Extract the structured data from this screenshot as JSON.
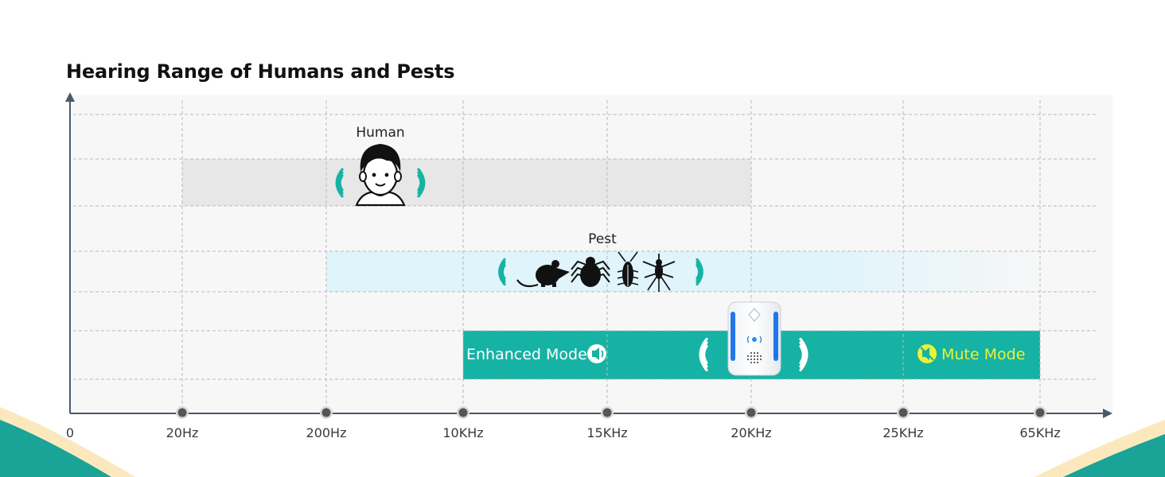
{
  "title": "Hearing Range of Humans and Pests",
  "colors": {
    "plot_bg": "#f7f7f7",
    "grid": "#b9b9b9",
    "axis": "#4a5868",
    "human_band": "#e7e7e7",
    "pest_band": "#dff4fb",
    "device_band": "#16b2a4",
    "wave": "#16b2a4",
    "enhanced_text": "#ffffff",
    "mute_text": "#e9f238",
    "deco_teal": "#1aa397",
    "deco_cream": "#fbe9bd"
  },
  "chart_data": {
    "type": "range-bar",
    "title": "Hearing Range of Humans and Pests",
    "x_ticks": [
      "0",
      "20Hz",
      "200Hz",
      "10KHz",
      "15KHz",
      "20KHz",
      "25KHz",
      "65KHz"
    ],
    "grid": true,
    "bands": [
      {
        "name": "Human",
        "start": "20Hz",
        "end": "20KHz",
        "icon": "human-face-icon"
      },
      {
        "name": "Pest",
        "start": "200Hz",
        "end": "65KHz",
        "icons": [
          "mouse-icon",
          "spider-icon",
          "cockroach-icon",
          "mosquito-icon"
        ],
        "fade_from": "25KHz"
      },
      {
        "name": "Device",
        "start": "10KHz",
        "end": "65KHz",
        "icon": "ultrasonic-repeller-device-icon",
        "modes": [
          {
            "label": "Enhanced Mode",
            "icon": "speaker-wave-icon"
          },
          {
            "label": "Mute Mode",
            "icon": "muted-speaker-icon"
          }
        ]
      }
    ]
  }
}
